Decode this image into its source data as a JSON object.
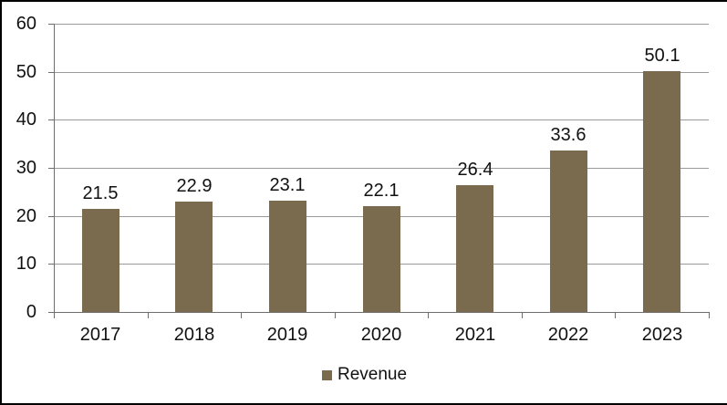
{
  "chart_data": {
    "type": "bar",
    "title": "",
    "categories": [
      "2017",
      "2018",
      "2019",
      "2020",
      "2021",
      "2022",
      "2023"
    ],
    "series": [
      {
        "name": "Revenue",
        "values": [
          21.5,
          22.9,
          23.1,
          22.1,
          26.4,
          33.6,
          50.1
        ]
      }
    ],
    "data_labels": [
      "21.5",
      "22.9",
      "23.1",
      "22.1",
      "26.4",
      "33.6",
      "50.1"
    ],
    "ylabel": "",
    "xlabel": "",
    "ylim": [
      0,
      60
    ],
    "ytick_interval": 10,
    "ytick_labels": [
      "0",
      "10",
      "20",
      "30",
      "40",
      "50",
      "60"
    ],
    "grid": "horizontal-major",
    "legend_position": "bottom-center",
    "colors": {
      "bar": "#7A6A4E",
      "gridline": "#9A9A9A",
      "axis": "#6E6E6E",
      "text": "#111111",
      "background": "#FFFFFF",
      "frame_border": "#000000"
    }
  },
  "legend": {
    "items": [
      {
        "label": "Revenue",
        "swatch_color": "#7A6A4E"
      }
    ]
  }
}
